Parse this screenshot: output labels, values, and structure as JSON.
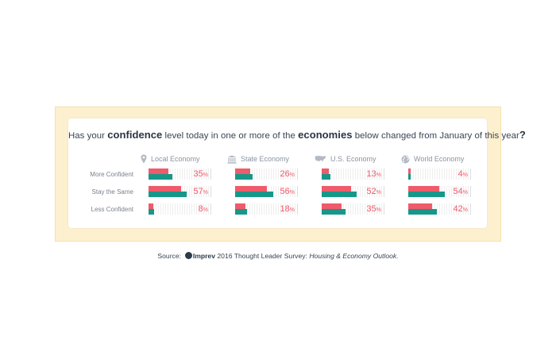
{
  "question": {
    "p1": "Has your ",
    "b1": "confidence",
    "p2": " level today in one or more of the ",
    "b2": "economies",
    "p3": " below changed from January of this year",
    "q": "?"
  },
  "source": {
    "label": "Source:",
    "brand": "Imprev",
    "text": " 2016 Thought Leader Survey: ",
    "italic": "Housing & Economy Outlook."
  },
  "colors": {
    "red": "#ef5b6a",
    "teal": "#17978a",
    "track": "#eeeeee"
  },
  "chart_data": {
    "type": "bar",
    "categories": [
      "More Confident",
      "Stay the Same",
      "Less Confident"
    ],
    "groups": [
      {
        "name": "Local Economy",
        "icon": "pin-icon",
        "values": [
          35,
          57,
          8
        ]
      },
      {
        "name": "State Economy",
        "icon": "capitol-icon",
        "values": [
          26,
          56,
          18
        ]
      },
      {
        "name": "U.S. Economy",
        "icon": "usa-map-icon",
        "values": [
          13,
          52,
          35
        ]
      },
      {
        "name": "World Economy",
        "icon": "globe-icon",
        "values": [
          4,
          54,
          42
        ]
      }
    ],
    "percent_sign": "%",
    "scale_max": 100
  }
}
